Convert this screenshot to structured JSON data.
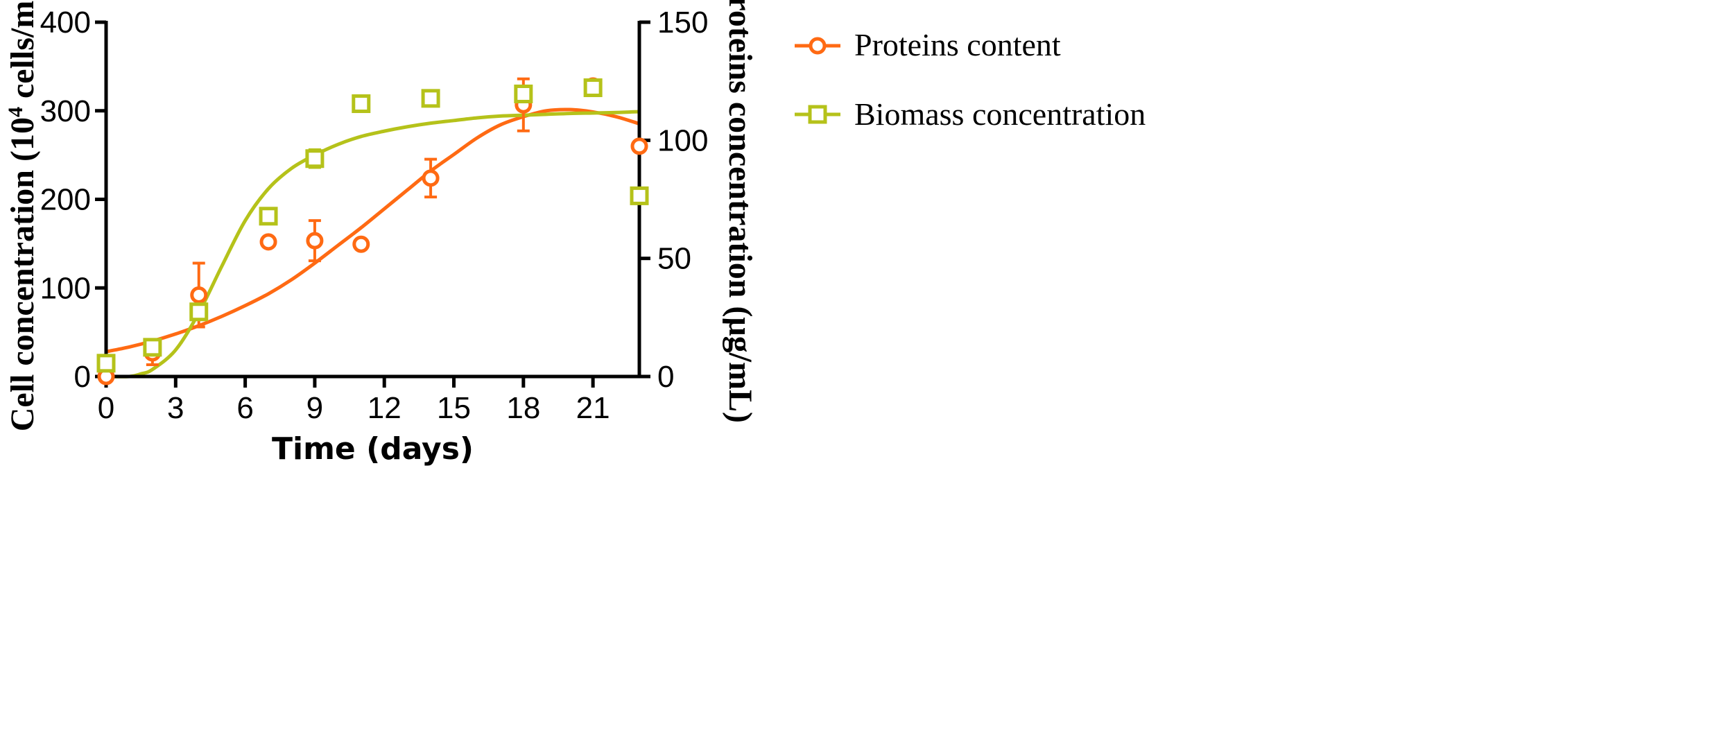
{
  "chart_data": {
    "type": "scatter",
    "title": "",
    "xlabel": "Time (days)",
    "ylabel_left_prefix": "Cell concentration (10",
    "ylabel_left_sup": "4",
    "ylabel_left_suffix": " cells/mL)",
    "ylabel_right": "Proteins concentration (μg/mL)",
    "xlim": [
      0,
      23
    ],
    "ylim_left": [
      0,
      400
    ],
    "ylim_right": [
      0,
      150
    ],
    "x_ticks": [
      0,
      3,
      6,
      9,
      12,
      15,
      18,
      21
    ],
    "y_left_ticks": [
      0,
      100,
      200,
      300,
      400
    ],
    "y_right_ticks": [
      0,
      50,
      100,
      150
    ],
    "legend_position": "top-right",
    "series": [
      {
        "name": "Proteins content",
        "axis": "right",
        "marker": "circle",
        "color": "#FF6A13",
        "points": [
          {
            "x": 0,
            "y": 0,
            "err": 0
          },
          {
            "x": 2,
            "y": 10,
            "err": 5
          },
          {
            "x": 4,
            "y": 34.5,
            "err": 13.5
          },
          {
            "x": 7,
            "y": 57,
            "err": 0
          },
          {
            "x": 9,
            "y": 57.5,
            "err": 8.5
          },
          {
            "x": 11,
            "y": 56,
            "err": 0
          },
          {
            "x": 14,
            "y": 84,
            "err": 8
          },
          {
            "x": 18,
            "y": 115,
            "err": 11
          },
          {
            "x": 21,
            "y": 123,
            "err": 0
          },
          {
            "x": 23,
            "y": 97.5,
            "err": 0
          }
        ],
        "fit": [
          [
            0,
            10.5
          ],
          [
            1,
            12.5
          ],
          [
            2,
            15
          ],
          [
            3,
            18
          ],
          [
            4,
            21.5
          ],
          [
            5,
            25.5
          ],
          [
            6,
            30
          ],
          [
            7,
            35
          ],
          [
            8,
            41
          ],
          [
            9,
            48
          ],
          [
            10,
            55.5
          ],
          [
            11,
            63
          ],
          [
            12,
            71
          ],
          [
            13,
            79
          ],
          [
            14,
            87
          ],
          [
            15,
            94
          ],
          [
            16,
            101
          ],
          [
            17,
            106.5
          ],
          [
            18,
            110
          ],
          [
            19,
            112.5
          ],
          [
            20,
            113
          ],
          [
            21,
            112
          ],
          [
            22,
            110
          ],
          [
            23,
            107
          ]
        ]
      },
      {
        "name": "Biomass concentration",
        "axis": "left",
        "marker": "square",
        "color": "#B5C21A",
        "points": [
          {
            "x": 0,
            "y": 15,
            "err": 0
          },
          {
            "x": 2,
            "y": 33,
            "err": 6
          },
          {
            "x": 4,
            "y": 73,
            "err": 7
          },
          {
            "x": 7,
            "y": 181,
            "err": 0
          },
          {
            "x": 9,
            "y": 246,
            "err": 10
          },
          {
            "x": 11,
            "y": 308,
            "err": 0
          },
          {
            "x": 14,
            "y": 314,
            "err": 0
          },
          {
            "x": 18,
            "y": 319,
            "err": 0
          },
          {
            "x": 21,
            "y": 326,
            "err": 0
          },
          {
            "x": 23,
            "y": 204,
            "err": 0
          }
        ],
        "fit": [
          [
            0,
            0
          ],
          [
            1,
            0
          ],
          [
            1.5,
            3
          ],
          [
            2,
            8
          ],
          [
            3,
            30
          ],
          [
            4,
            72
          ],
          [
            5,
            125
          ],
          [
            6,
            176
          ],
          [
            7,
            212
          ],
          [
            8,
            235
          ],
          [
            9,
            250
          ],
          [
            10,
            262
          ],
          [
            11,
            271
          ],
          [
            12,
            277
          ],
          [
            13,
            282
          ],
          [
            14,
            286
          ],
          [
            15,
            289
          ],
          [
            16,
            292
          ],
          [
            17,
            294
          ],
          [
            18,
            295
          ],
          [
            19,
            296
          ],
          [
            20,
            297
          ],
          [
            21,
            297.5
          ],
          [
            22,
            298
          ],
          [
            23,
            299
          ]
        ]
      }
    ]
  }
}
